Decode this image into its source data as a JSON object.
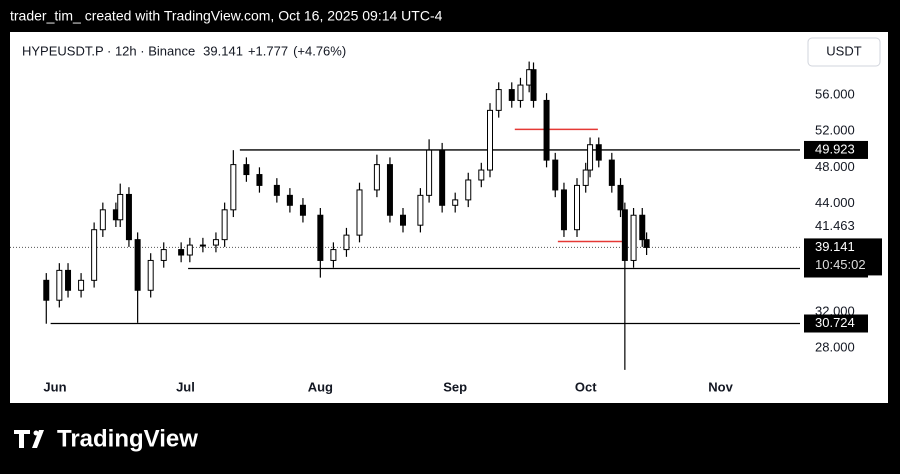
{
  "header": "trader_tim_ created with TradingView.com, Oct 16, 2025 09:14 UTC-4",
  "brand": "TradingView",
  "chart_data": {
    "type": "candlestick",
    "title": "HYPEUSDT.P · 12h · Binance",
    "last_price": 39.141,
    "change": {
      "value": 1.777,
      "label": "+1.777"
    },
    "change_pct": {
      "value": 4.76,
      "label": "(+4.76%)"
    },
    "currency": "USDT",
    "countdown": "10:45:02",
    "color": "#000000",
    "x": [
      -2,
      1,
      3,
      6,
      9,
      11,
      14,
      15,
      17,
      19,
      22,
      25,
      29,
      31,
      34,
      37,
      39,
      41,
      44,
      47,
      51,
      54,
      57,
      61,
      64,
      67,
      70,
      74,
      77,
      80,
      84,
      86,
      89,
      92,
      95,
      98,
      100,
      102,
      105,
      107,
      109,
      110,
      113,
      115,
      117,
      120,
      122,
      123,
      125,
      128,
      130,
      131,
      133,
      135,
      136
    ],
    "open": [
      35.5,
      33.3,
      36.6,
      34.4,
      35.5,
      41.1,
      43.3,
      42.2,
      45,
      40,
      34.4,
      37.7,
      38.9,
      38.3,
      39.4,
      39.4,
      40,
      43.3,
      48.3,
      47.2,
      46,
      44.9,
      43.8,
      42.7,
      37.7,
      38.9,
      40.5,
      45.5,
      48.3,
      42.7,
      41.6,
      44.9,
      49.9,
      43.8,
      44.4,
      46.6,
      47.7,
      54.3,
      56.6,
      55.4,
      57.1,
      58.8,
      55.4,
      48.8,
      45.5,
      41.1,
      46,
      47.7,
      50.5,
      48.8,
      46,
      43.3,
      37.7,
      42.7,
      40
    ],
    "high": [
      36.3,
      37.4,
      37.4,
      36.3,
      41.9,
      44.1,
      44.1,
      46.2,
      45.8,
      40.8,
      38.5,
      39.7,
      39.7,
      40.2,
      40.2,
      40.8,
      44.1,
      49.9,
      49.1,
      48,
      46.8,
      45.7,
      44.6,
      43.5,
      39.7,
      41.3,
      46.3,
      49.4,
      49.1,
      43.5,
      45.7,
      51.1,
      50.7,
      45.2,
      47.4,
      48.5,
      55.1,
      57.4,
      57.4,
      57.9,
      59.7,
      59.6,
      56.2,
      49.6,
      46.3,
      46.8,
      48.5,
      51.3,
      51.3,
      49.6,
      46.8,
      44.1,
      43.5,
      43.5,
      40.8
    ],
    "low": [
      30.7,
      32.5,
      33.6,
      33.6,
      34.7,
      40.3,
      41.4,
      41.4,
      39.2,
      30.8,
      33.6,
      36.9,
      37.5,
      37.5,
      38.6,
      38.6,
      39.2,
      42.5,
      46.4,
      45.2,
      44.1,
      43,
      41.9,
      35.8,
      36.9,
      38.1,
      39.7,
      44.7,
      41.9,
      40.8,
      40.8,
      44.1,
      43,
      43,
      43.6,
      45.8,
      46.9,
      53.5,
      54.6,
      54.6,
      56.3,
      54.6,
      48,
      44.7,
      40.3,
      40.3,
      45.2,
      46.9,
      48,
      45.2,
      42.5,
      25.6,
      36.9,
      39.2,
      38.3
    ],
    "close": [
      33.3,
      36.6,
      34.4,
      35.5,
      41.1,
      43.3,
      42.2,
      45,
      40,
      34.4,
      37.7,
      38.9,
      38.3,
      39.4,
      39.4,
      40,
      43.3,
      48.3,
      47.2,
      46,
      44.9,
      43.8,
      42.7,
      37.7,
      38.9,
      40.5,
      45.5,
      48.3,
      42.7,
      41.6,
      44.9,
      49.9,
      43.8,
      44.4,
      46.6,
      47.7,
      54.3,
      56.6,
      55.4,
      57.1,
      58.8,
      55.4,
      48.8,
      45.5,
      41.1,
      46,
      47.7,
      50.5,
      48.8,
      46,
      43.3,
      37.7,
      42.7,
      40,
      39.141
    ],
    "levels": [
      {
        "value": 49.923,
        "from": 42.5,
        "color": "#000000"
      },
      {
        "value": 36.809,
        "from": 30.6,
        "color": "#000000"
      },
      {
        "value": 30.724,
        "from": -1,
        "color": "#000000"
      }
    ],
    "zones": [
      {
        "value": 52.2,
        "from": 105.7,
        "to": 124.8,
        "color": "#e53935"
      },
      {
        "value": 39.8,
        "from": 115.6,
        "to": 131,
        "color": "#e53935"
      }
    ],
    "xlim": [
      -10.34,
      171.26
    ],
    "xticks": [
      {
        "value": 0,
        "label": "Jun"
      },
      {
        "value": 30,
        "label": "Jul"
      },
      {
        "value": 61,
        "label": "Aug"
      },
      {
        "value": 92,
        "label": "Sep"
      },
      {
        "value": 122,
        "label": "Oct"
      },
      {
        "value": 153,
        "label": "Nov"
      }
    ],
    "ylim": [
      21.93,
      62.97
    ],
    "yticks": [
      {
        "value": 28,
        "label": "28.000"
      },
      {
        "value": 32,
        "label": "32.000"
      },
      41.463,
      {
        "value": 44,
        "label": "44.000"
      },
      {
        "value": 48,
        "label": "48.000"
      },
      {
        "value": 52,
        "label": "52.000"
      },
      {
        "value": 56,
        "label": "56.000"
      }
    ]
  }
}
